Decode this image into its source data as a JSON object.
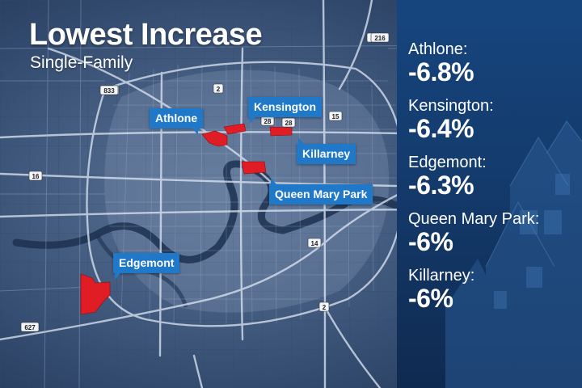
{
  "title": "Lowest Increase",
  "subtitle": "Single-Family",
  "neighbourhoods": [
    {
      "name": "Athlone",
      "label": "Athlone:",
      "value": "-6.8%"
    },
    {
      "name": "Kensington",
      "label": "Kensington:",
      "value": "-6.4%"
    },
    {
      "name": "Edgemont",
      "label": "Edgemont:",
      "value": "-6.3%"
    },
    {
      "name": "Queen Mary Park",
      "label": "Queen Mary Park:",
      "value": "-6%"
    },
    {
      "name": "Killarney",
      "label": "Killarney:",
      "value": "-6%"
    }
  ],
  "highway_shields": [
    "2",
    "14",
    "16",
    "15",
    "216",
    "216",
    "28",
    "28",
    "2",
    "627",
    "833",
    "216"
  ],
  "colors": {
    "callout": "#1f78c8",
    "highlight": "#e01c25",
    "panel": "#173e72",
    "map": "#2c4468"
  }
}
